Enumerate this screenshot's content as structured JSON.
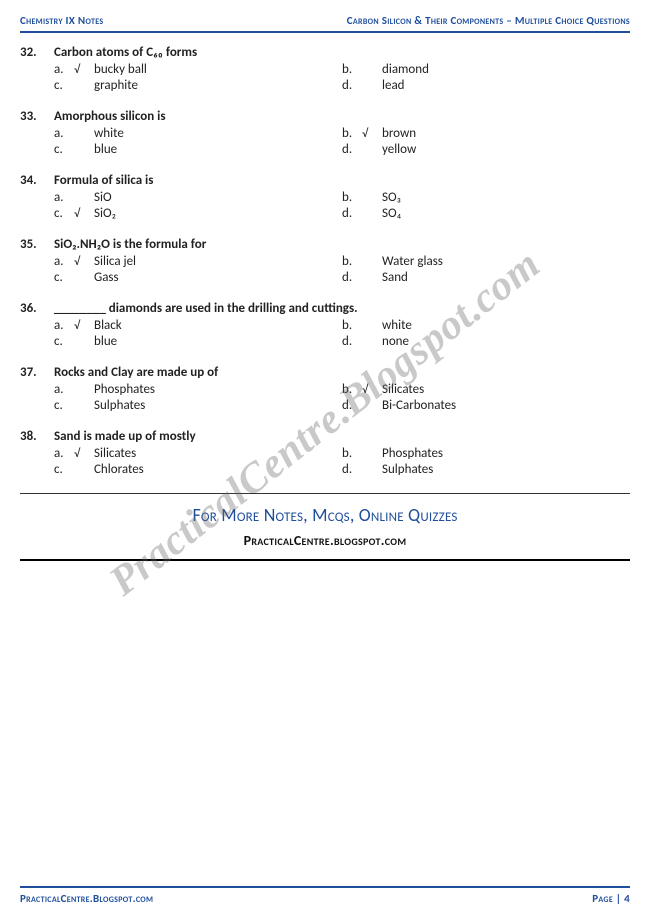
{
  "header": {
    "left": "Chemistry IX Notes",
    "right": "Carbon Silicon & Their Components – Multiple Choice Questions"
  },
  "questions": [
    {
      "num": "32.",
      "text": "Carbon atoms of C₆₀ forms",
      "a": {
        "l": "a.",
        "m": "√",
        "t": "bucky ball"
      },
      "b": {
        "l": "b.",
        "m": "",
        "t": "diamond"
      },
      "c": {
        "l": "c.",
        "m": "",
        "t": "graphite"
      },
      "d": {
        "l": "d.",
        "m": "",
        "t": "lead"
      }
    },
    {
      "num": "33.",
      "text": "Amorphous silicon is",
      "a": {
        "l": "a.",
        "m": "",
        "t": "white"
      },
      "b": {
        "l": "b.",
        "m": "√",
        "t": "brown"
      },
      "c": {
        "l": "c.",
        "m": "",
        "t": "blue"
      },
      "d": {
        "l": "d.",
        "m": "",
        "t": "yellow"
      }
    },
    {
      "num": "34.",
      "text": "Formula of silica is",
      "a": {
        "l": "a.",
        "m": "",
        "t": "SiO"
      },
      "b": {
        "l": "b.",
        "m": "",
        "t": "SO₃"
      },
      "c": {
        "l": "c.",
        "m": "√",
        "t": "SiO₂"
      },
      "d": {
        "l": "d.",
        "m": "",
        "t": "SO₄"
      }
    },
    {
      "num": "35.",
      "text": "SiO₂.NH₂O is the formula for",
      "a": {
        "l": "a.",
        "m": "√",
        "t": "Silica jel"
      },
      "b": {
        "l": "b.",
        "m": "",
        "t": "Water glass"
      },
      "c": {
        "l": "c.",
        "m": "",
        "t": "Gass"
      },
      "d": {
        "l": "d.",
        "m": "",
        "t": "Sand"
      }
    },
    {
      "num": "36.",
      "text": "________ diamonds are used in the drilling and cuttings.",
      "a": {
        "l": "a.",
        "m": "√",
        "t": "Black"
      },
      "b": {
        "l": "b.",
        "m": "",
        "t": "white"
      },
      "c": {
        "l": "c.",
        "m": "",
        "t": "blue"
      },
      "d": {
        "l": "d.",
        "m": "",
        "t": "none"
      }
    },
    {
      "num": "37.",
      "text": "Rocks and Clay are made up of",
      "a": {
        "l": "a.",
        "m": "",
        "t": "Phosphates"
      },
      "b": {
        "l": "b.",
        "m": "√",
        "t": "Silicates"
      },
      "c": {
        "l": "c.",
        "m": "",
        "t": "Sulphates"
      },
      "d": {
        "l": "d.",
        "m": "",
        "t": "Bi-Carbonates"
      }
    },
    {
      "num": "38.",
      "text": "Sand is made up of mostly",
      "a": {
        "l": "a.",
        "m": "√",
        "t": "Silicates"
      },
      "b": {
        "l": "b.",
        "m": "",
        "t": "Phosphates"
      },
      "c": {
        "l": "c.",
        "m": "",
        "t": "Chlorates"
      },
      "d": {
        "l": "d.",
        "m": "",
        "t": "Sulphates"
      }
    }
  ],
  "moreText": "For More Notes, Mcqs, Online Quizzes",
  "siteText": "PracticalCentre.blogspot.com",
  "footer": {
    "left": "PracticalCentre.Blogspot.com",
    "right": "Page | 4"
  },
  "watermark": "PracticalCentre.Blogspot.com",
  "colors": {
    "accent": "#1f4e9c",
    "text": "#222",
    "wm": "rgba(100,100,100,0.35)"
  }
}
